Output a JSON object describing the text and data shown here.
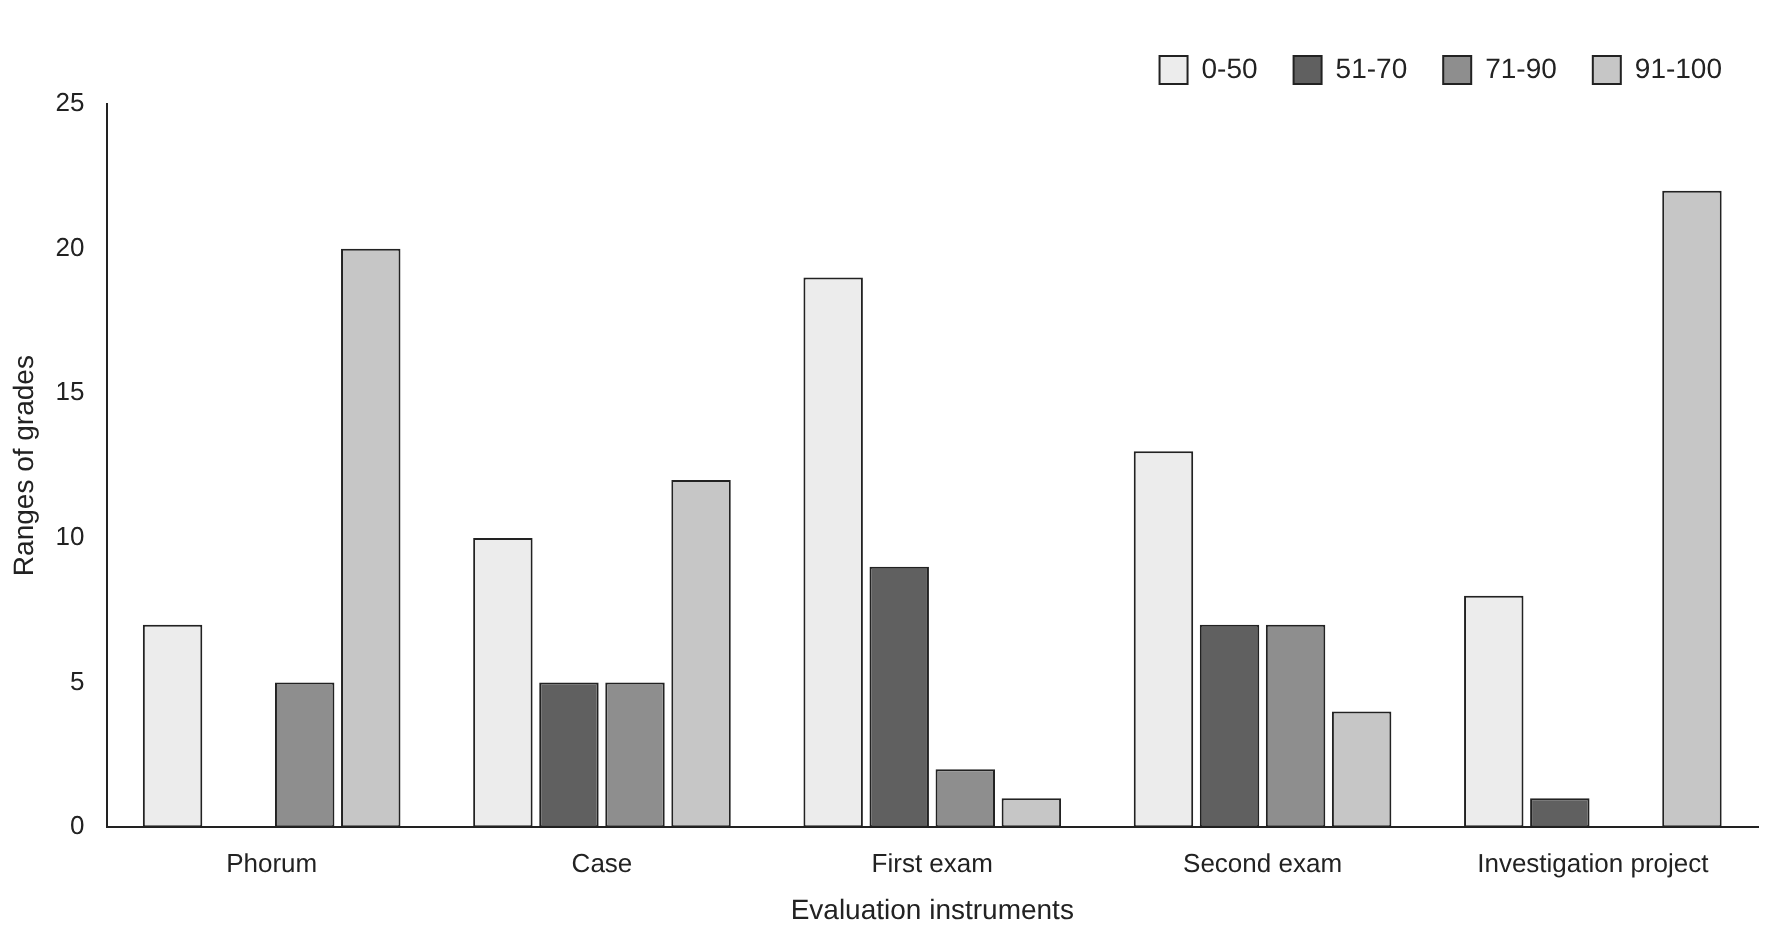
{
  "chart_data": {
    "type": "bar",
    "xlabel": "Evaluation instruments",
    "ylabel": "Ranges of grades",
    "categories": [
      "Phorum",
      "Case",
      "First exam",
      "Second exam",
      "Investigation project"
    ],
    "series": [
      {
        "name": "0-50",
        "color": "#ececec",
        "values": [
          7,
          10,
          19,
          13,
          8
        ]
      },
      {
        "name": "51-70",
        "color": "#606060",
        "values": [
          0,
          5,
          9,
          7,
          1
        ]
      },
      {
        "name": "71-90",
        "color": "#8e8e8e",
        "values": [
          5,
          5,
          2,
          7,
          0
        ]
      },
      {
        "name": "91-100",
        "color": "#c6c6c6",
        "values": [
          20,
          12,
          1,
          4,
          22
        ]
      }
    ],
    "ylim": [
      0,
      25
    ],
    "yticks": [
      0,
      5,
      10,
      15,
      20,
      25
    ],
    "grid": false,
    "legend": "top right"
  }
}
